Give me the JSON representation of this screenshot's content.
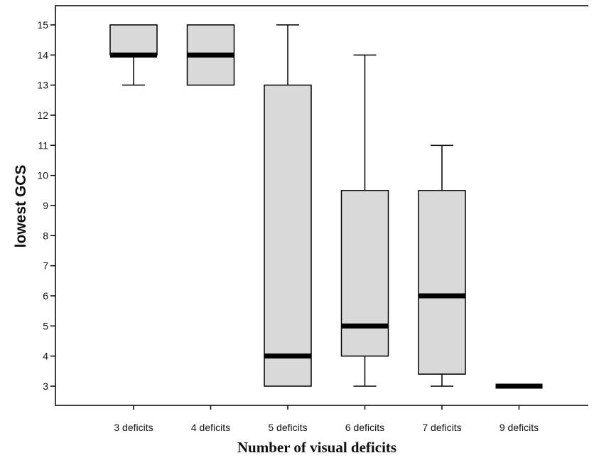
{
  "chart_data": {
    "type": "box",
    "xlabel": "Number of visual deficits",
    "ylabel": "lowest GCS",
    "ylim": [
      2.5,
      15.5
    ],
    "yticks": [
      3,
      4,
      5,
      6,
      7,
      8,
      9,
      10,
      11,
      12,
      13,
      14,
      15
    ],
    "grid": false,
    "box_fill": "#d9d9d9",
    "categories": [
      "3 deficits",
      "4 deficits",
      "5 deficits",
      "6 deficits",
      "7 deficits",
      "9 deficits"
    ],
    "boxes": [
      {
        "category": "3 deficits",
        "whisker_low": 13,
        "q1": 14,
        "median": 14,
        "q3": 15,
        "whisker_high": 15
      },
      {
        "category": "4 deficits",
        "whisker_low": 13,
        "q1": 13,
        "median": 14,
        "q3": 15,
        "whisker_high": 15
      },
      {
        "category": "5 deficits",
        "whisker_low": 3,
        "q1": 3,
        "median": 4,
        "q3": 13,
        "whisker_high": 15
      },
      {
        "category": "6 deficits",
        "whisker_low": 3,
        "q1": 4,
        "median": 5,
        "q3": 9.5,
        "whisker_high": 14
      },
      {
        "category": "7 deficits",
        "whisker_low": 3,
        "q1": 3.4,
        "median": 6,
        "q3": 9.5,
        "whisker_high": 11
      },
      {
        "category": "9 deficits",
        "whisker_low": 3,
        "q1": 3,
        "median": 3,
        "q3": 3,
        "whisker_high": 3
      }
    ]
  }
}
